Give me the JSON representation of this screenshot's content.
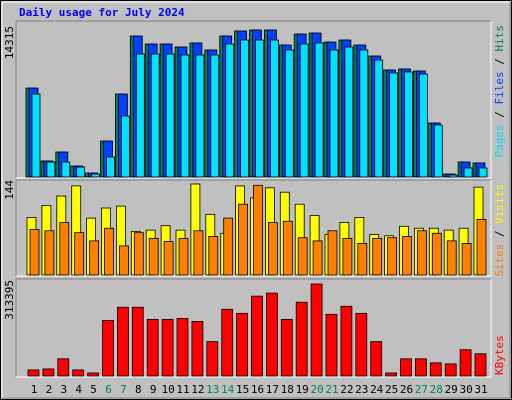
{
  "title": "Daily usage for July 2024",
  "chart_data": [
    {
      "type": "bar",
      "ylim": [
        0,
        14315
      ],
      "yticks": [
        14315
      ],
      "legend_separator": "/",
      "series": [
        {
          "name": "Hits",
          "color": "#00805c",
          "values": [
            8660,
            1560,
            2430,
            1070,
            390,
            3500,
            8080,
            13730,
            12950,
            12950,
            12660,
            13050,
            12370,
            13730,
            14220,
            14315,
            14315,
            12850,
            13920,
            14020,
            13140,
            13340,
            12850,
            11780,
            10420,
            10520,
            10320,
            5260,
            290,
            1460,
            1370
          ]
        },
        {
          "name": "Files",
          "color": "#0040ff",
          "values": [
            8660,
            1560,
            2430,
            1070,
            390,
            3500,
            8080,
            13730,
            12950,
            12950,
            12660,
            13050,
            12370,
            13730,
            14220,
            14315,
            14315,
            12850,
            13920,
            14020,
            13140,
            13340,
            12850,
            11780,
            10420,
            10520,
            10320,
            5260,
            290,
            1460,
            1370
          ]
        },
        {
          "name": "Pages",
          "color": "#00e0ff",
          "values": [
            8080,
            1460,
            1460,
            970,
            290,
            1950,
            5940,
            11980,
            11980,
            11980,
            11880,
            11880,
            11880,
            12950,
            13340,
            13340,
            13340,
            12370,
            12950,
            13050,
            12370,
            12660,
            12370,
            11390,
            10130,
            10230,
            10030,
            5060,
            195,
            880,
            880
          ]
        }
      ]
    },
    {
      "type": "bar",
      "ylim": [
        0,
        144
      ],
      "yticks": [
        144
      ],
      "legend_separator": "/",
      "series": [
        {
          "name": "Visits",
          "color": "#ffff00",
          "values": [
            91,
            110,
            125,
            141,
            90,
            106,
            109,
            69,
            71,
            78,
            71,
            144,
            96,
            66,
            141,
            122,
            138,
            131,
            112,
            94,
            64,
            83,
            91,
            64,
            62,
            77,
            74,
            74,
            71,
            74,
            139
          ]
        },
        {
          "name": "Sites",
          "color": "#ff8000",
          "values": [
            72,
            70,
            83,
            67,
            54,
            74,
            46,
            67,
            58,
            53,
            58,
            70,
            61,
            90,
            112,
            142,
            83,
            85,
            59,
            54,
            70,
            58,
            50,
            58,
            59,
            61,
            70,
            66,
            54,
            50,
            88
          ]
        }
      ]
    },
    {
      "type": "bar",
      "ylim": [
        0,
        313395
      ],
      "yticks": [
        313395
      ],
      "categories": [
        "1",
        "2",
        "3",
        "4",
        "5",
        "6",
        "7",
        "8",
        "9",
        "10",
        "11",
        "12",
        "13",
        "14",
        "15",
        "16",
        "17",
        "18",
        "19",
        "20",
        "21",
        "22",
        "23",
        "24",
        "25",
        "26",
        "27",
        "28",
        "29",
        "30",
        "31"
      ],
      "category_colors": [
        "#000000",
        "#000000",
        "#000000",
        "#000000",
        "#000000",
        "#00805c",
        "#00805c",
        "#000000",
        "#000000",
        "#000000",
        "#000000",
        "#000000",
        "#00805c",
        "#00805c",
        "#000000",
        "#000000",
        "#000000",
        "#000000",
        "#000000",
        "#00805c",
        "#00805c",
        "#000000",
        "#000000",
        "#000000",
        "#000000",
        "#000000",
        "#00805c",
        "#00805c",
        "#000000",
        "#000000",
        "#000000"
      ],
      "series": [
        {
          "name": "KBytes",
          "color": "#ff0000",
          "values": [
            20660,
            24100,
            58540,
            20660,
            10330,
            189400,
            234200,
            234200,
            192900,
            192900,
            196300,
            186000,
            117100,
            227300,
            213500,
            272000,
            282400,
            192900,
            251400,
            313395,
            210000,
            237500,
            213500,
            117100,
            10330,
            58540,
            58540,
            44800,
            41300,
            89500,
            75800
          ]
        }
      ]
    }
  ]
}
